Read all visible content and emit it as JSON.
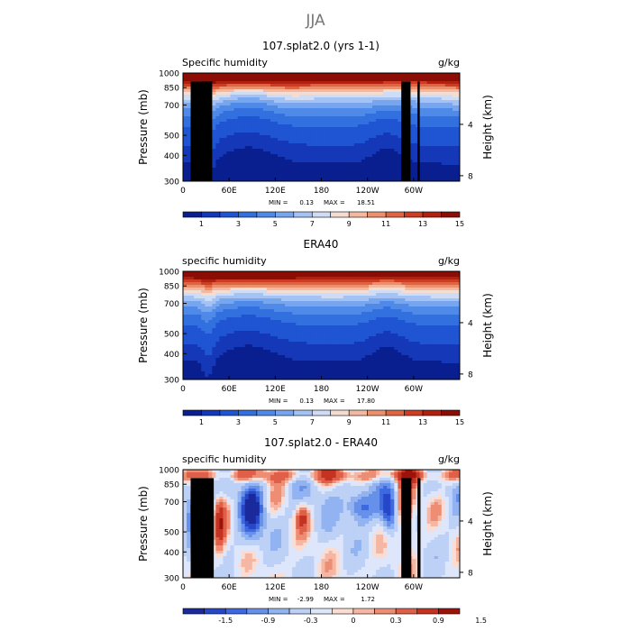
{
  "figure": {
    "title": "JJA"
  },
  "colors": {
    "abs_palette": [
      "#0a1f8f",
      "#1538b8",
      "#1f55d2",
      "#3270e0",
      "#4f8ae8",
      "#78a6ee",
      "#a4c2f3",
      "#cfdcf6",
      "#f4dcd0",
      "#f3b8a0",
      "#eb8f6c",
      "#de6442",
      "#cc3d24",
      "#b0220f",
      "#8c0d05"
    ],
    "diff_palette": [
      "#1a2a9c",
      "#2547c8",
      "#3d68e0",
      "#6690ea",
      "#92b3f1",
      "#bdd0f6",
      "#dde6fa",
      "#fbdcd2",
      "#f5b7a4",
      "#ec8d74",
      "#df5f48",
      "#c43322",
      "#9c1409"
    ],
    "land": "#000000"
  },
  "panels": [
    {
      "title": "107.splat2.0 (yrs 1-1)",
      "left_label": "Specific humidity",
      "right_label": "g/kg",
      "min_label": "MIN =",
      "min_value": "0.13",
      "max_label": "MAX =",
      "max_value": "18.51"
    },
    {
      "title": "ERA40",
      "left_label": "specific humidity",
      "right_label": "g/kg",
      "min_label": "MIN =",
      "min_value": "0.13",
      "max_label": "MAX =",
      "max_value": "17.80"
    },
    {
      "title": "107.splat2.0 - ERA40",
      "left_label": "specific humidity",
      "right_label": "g/kg",
      "min_label": "MIN =",
      "min_value": "-2.99",
      "max_label": "MAX =",
      "max_value": "1.72"
    }
  ],
  "chart_data": [
    {
      "type": "heatmap",
      "title": "107.splat2.0 (yrs 1-1)",
      "xlabel": "",
      "ylabel": "Pressure (mb)",
      "y2label": "Height (km)",
      "x_ticks": [
        "0",
        "60E",
        "120E",
        "180",
        "120W",
        "60W"
      ],
      "x_tick_positions": [
        0,
        60,
        120,
        180,
        240,
        300
      ],
      "xlim": [
        0,
        360
      ],
      "y_ticks": [
        300,
        400,
        500,
        700,
        850,
        1000
      ],
      "ylim": [
        1000,
        300
      ],
      "y_scale": "log",
      "y2_ticks": [
        "8",
        "4"
      ],
      "y2_tick_values": [
        8,
        4
      ],
      "colorbar_labels": [
        "1",
        "3",
        "5",
        "7",
        "9",
        "11",
        "13",
        "15"
      ],
      "colorbar_levels": [
        0.5,
        1,
        2,
        3,
        4,
        5,
        6,
        7,
        8,
        9,
        10,
        11,
        12,
        13,
        14,
        15
      ],
      "min": 0.13,
      "max": 18.51
    },
    {
      "type": "heatmap",
      "title": "ERA40",
      "xlabel": "",
      "ylabel": "Pressure (mb)",
      "y2label": "Height (km)",
      "x_ticks": [
        "0",
        "60E",
        "120E",
        "180",
        "120W",
        "60W"
      ],
      "x_tick_positions": [
        0,
        60,
        120,
        180,
        240,
        300
      ],
      "xlim": [
        0,
        360
      ],
      "y_ticks": [
        300,
        400,
        500,
        700,
        850,
        1000
      ],
      "ylim": [
        1000,
        300
      ],
      "y_scale": "log",
      "y2_ticks": [
        "8",
        "4"
      ],
      "y2_tick_values": [
        8,
        4
      ],
      "colorbar_labels": [
        "1",
        "3",
        "5",
        "7",
        "9",
        "11",
        "13",
        "15"
      ],
      "colorbar_levels": [
        0.5,
        1,
        2,
        3,
        4,
        5,
        6,
        7,
        8,
        9,
        10,
        11,
        12,
        13,
        14,
        15
      ],
      "min": 0.13,
      "max": 17.8
    },
    {
      "type": "heatmap",
      "title": "107.splat2.0 - ERA40",
      "xlabel": "",
      "ylabel": "Pressure (mb)",
      "y2label": "Height (km)",
      "x_ticks": [
        "0",
        "60E",
        "120E",
        "180",
        "120W",
        "60W"
      ],
      "x_tick_positions": [
        0,
        60,
        120,
        180,
        240,
        300
      ],
      "xlim": [
        0,
        360
      ],
      "y_ticks": [
        300,
        400,
        500,
        700,
        850,
        1000
      ],
      "ylim": [
        1000,
        300
      ],
      "y_scale": "log",
      "y2_ticks": [
        "8",
        "4"
      ],
      "y2_tick_values": [
        8,
        4
      ],
      "colorbar_labels": [
        "-1.5",
        "-0.9",
        "-0.3",
        "0",
        "0.3",
        "0.9",
        "1.5"
      ],
      "colorbar_levels": [
        -1.8,
        -1.5,
        -1.2,
        -0.9,
        -0.6,
        -0.3,
        -0.1,
        0,
        0.1,
        0.3,
        0.6,
        0.9,
        1.2,
        1.5,
        1.8
      ],
      "min": -2.99,
      "max": 1.72
    }
  ]
}
